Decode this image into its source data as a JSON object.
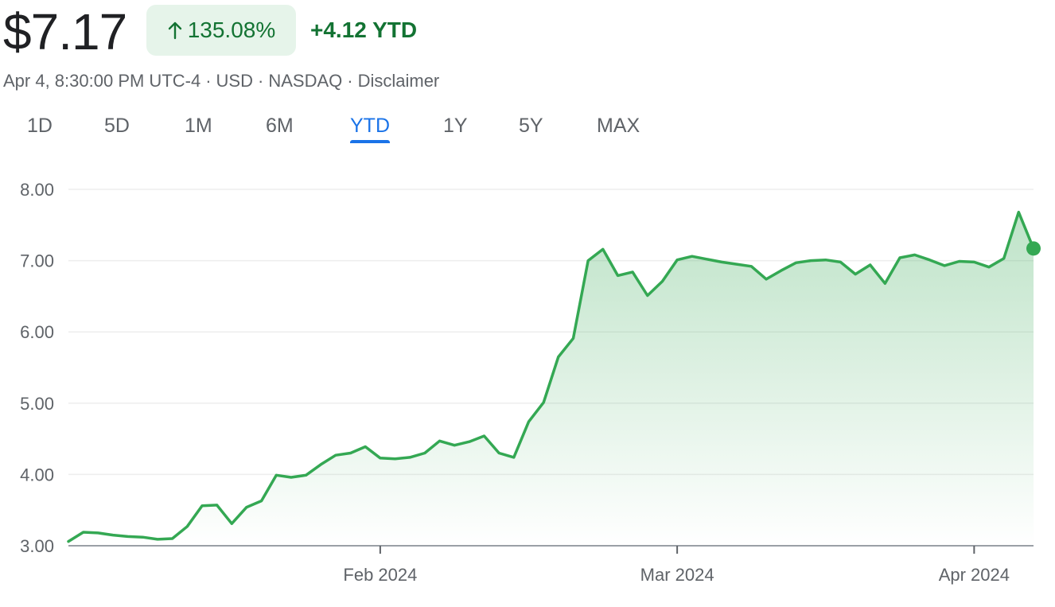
{
  "quote": {
    "price": "$7.17",
    "change_percent": "135.08%",
    "change_abs": "+4.12 YTD",
    "timestamp": "Apr 4, 8:30:00 PM UTC-4",
    "currency": "USD",
    "exchange": "NASDAQ",
    "disclaimer": "Disclaimer"
  },
  "tabs": [
    {
      "label": "1D"
    },
    {
      "label": "5D"
    },
    {
      "label": "1M"
    },
    {
      "label": "6M"
    },
    {
      "label": "YTD",
      "active": true
    },
    {
      "label": "1Y"
    },
    {
      "label": "5Y"
    },
    {
      "label": "MAX"
    }
  ],
  "colors": {
    "line": "#34a853",
    "positive_text": "#137333",
    "badge_bg": "#e6f4ea",
    "active_tab": "#1a73e8"
  },
  "chart_data": {
    "type": "area",
    "ylim": [
      3.0,
      8.0
    ],
    "yticks": [
      "3.00",
      "4.00",
      "5.00",
      "6.00",
      "7.00",
      "8.00"
    ],
    "xticks": [
      {
        "label": "Feb 2024",
        "index": 21
      },
      {
        "label": "Mar 2024",
        "index": 41
      },
      {
        "label": "Apr 2024",
        "index": 61
      }
    ],
    "grid": true,
    "values": [
      3.06,
      3.19,
      3.18,
      3.15,
      3.13,
      3.12,
      3.09,
      3.1,
      3.27,
      3.56,
      3.57,
      3.31,
      3.54,
      3.63,
      3.99,
      3.96,
      3.99,
      4.14,
      4.27,
      4.3,
      4.39,
      4.23,
      4.22,
      4.24,
      4.3,
      4.47,
      4.41,
      4.46,
      4.54,
      4.3,
      4.24,
      4.74,
      5.01,
      5.65,
      5.91,
      7.0,
      7.16,
      6.79,
      6.84,
      6.51,
      6.71,
      7.01,
      7.06,
      7.02,
      6.98,
      6.95,
      6.92,
      6.74,
      6.86,
      6.97,
      7.0,
      7.01,
      6.98,
      6.81,
      6.94,
      6.68,
      7.04,
      7.08,
      7.01,
      6.93,
      6.99,
      6.98,
      6.91,
      7.03,
      7.68,
      7.17
    ]
  }
}
